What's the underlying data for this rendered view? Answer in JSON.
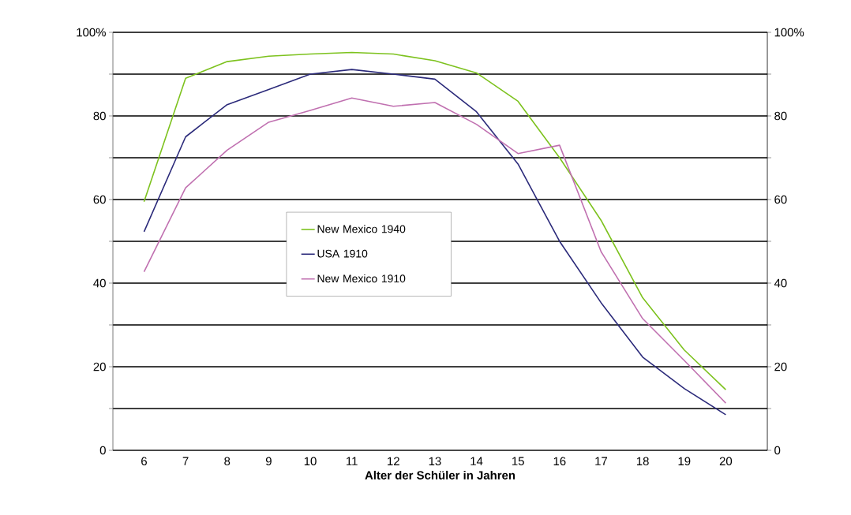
{
  "chart_data": {
    "type": "line",
    "xlabel": "Alter der Schüler in Jahren",
    "categories": [
      "6",
      "7",
      "8",
      "9",
      "10",
      "11",
      "12",
      "13",
      "14",
      "15",
      "16",
      "17",
      "18",
      "19",
      "20"
    ],
    "series": [
      {
        "name": "New Mexico 1940",
        "color": "#7dc21e",
        "values": [
          59.5,
          89,
          93,
          94.3,
          94.8,
          95.2,
          94.8,
          93.2,
          90.3,
          83.5,
          70,
          55,
          36.5,
          24,
          14.5
        ]
      },
      {
        "name": "USA 1910",
        "color": "#2b2a7a",
        "values": [
          52.3,
          75,
          82.7,
          86.3,
          90,
          91.1,
          90,
          88.8,
          81,
          68.5,
          50,
          35.3,
          22.3,
          14.8,
          8.5
        ]
      },
      {
        "name": "New Mexico 1910",
        "color": "#c070b0",
        "values": [
          42.7,
          62.8,
          71.8,
          78.5,
          81.3,
          84.3,
          82.3,
          83.2,
          78,
          71,
          73,
          47.5,
          31.5,
          21.5,
          11.3
        ]
      }
    ],
    "ylim": [
      0,
      100
    ],
    "yticks": [
      0,
      {
        "value": 10,
        "label": null
      },
      20,
      {
        "value": 30,
        "label": null
      },
      40,
      {
        "value": 50,
        "label": null
      },
      60,
      {
        "value": 70,
        "label": null
      },
      80,
      {
        "value": 90,
        "label": null
      },
      {
        "value": 100,
        "label": "100%"
      }
    ],
    "y2lim": [
      0,
      100
    ],
    "y2ticks": [
      0,
      {
        "value": 10,
        "label": null
      },
      20,
      {
        "value": 30,
        "label": null
      },
      40,
      {
        "value": 50,
        "label": null
      },
      60,
      {
        "value": 70,
        "label": null
      },
      80,
      {
        "value": 90,
        "label": null
      },
      {
        "value": 100,
        "label": "100%"
      }
    ],
    "grid": "y",
    "legend": "center",
    "line_style": "solid"
  }
}
